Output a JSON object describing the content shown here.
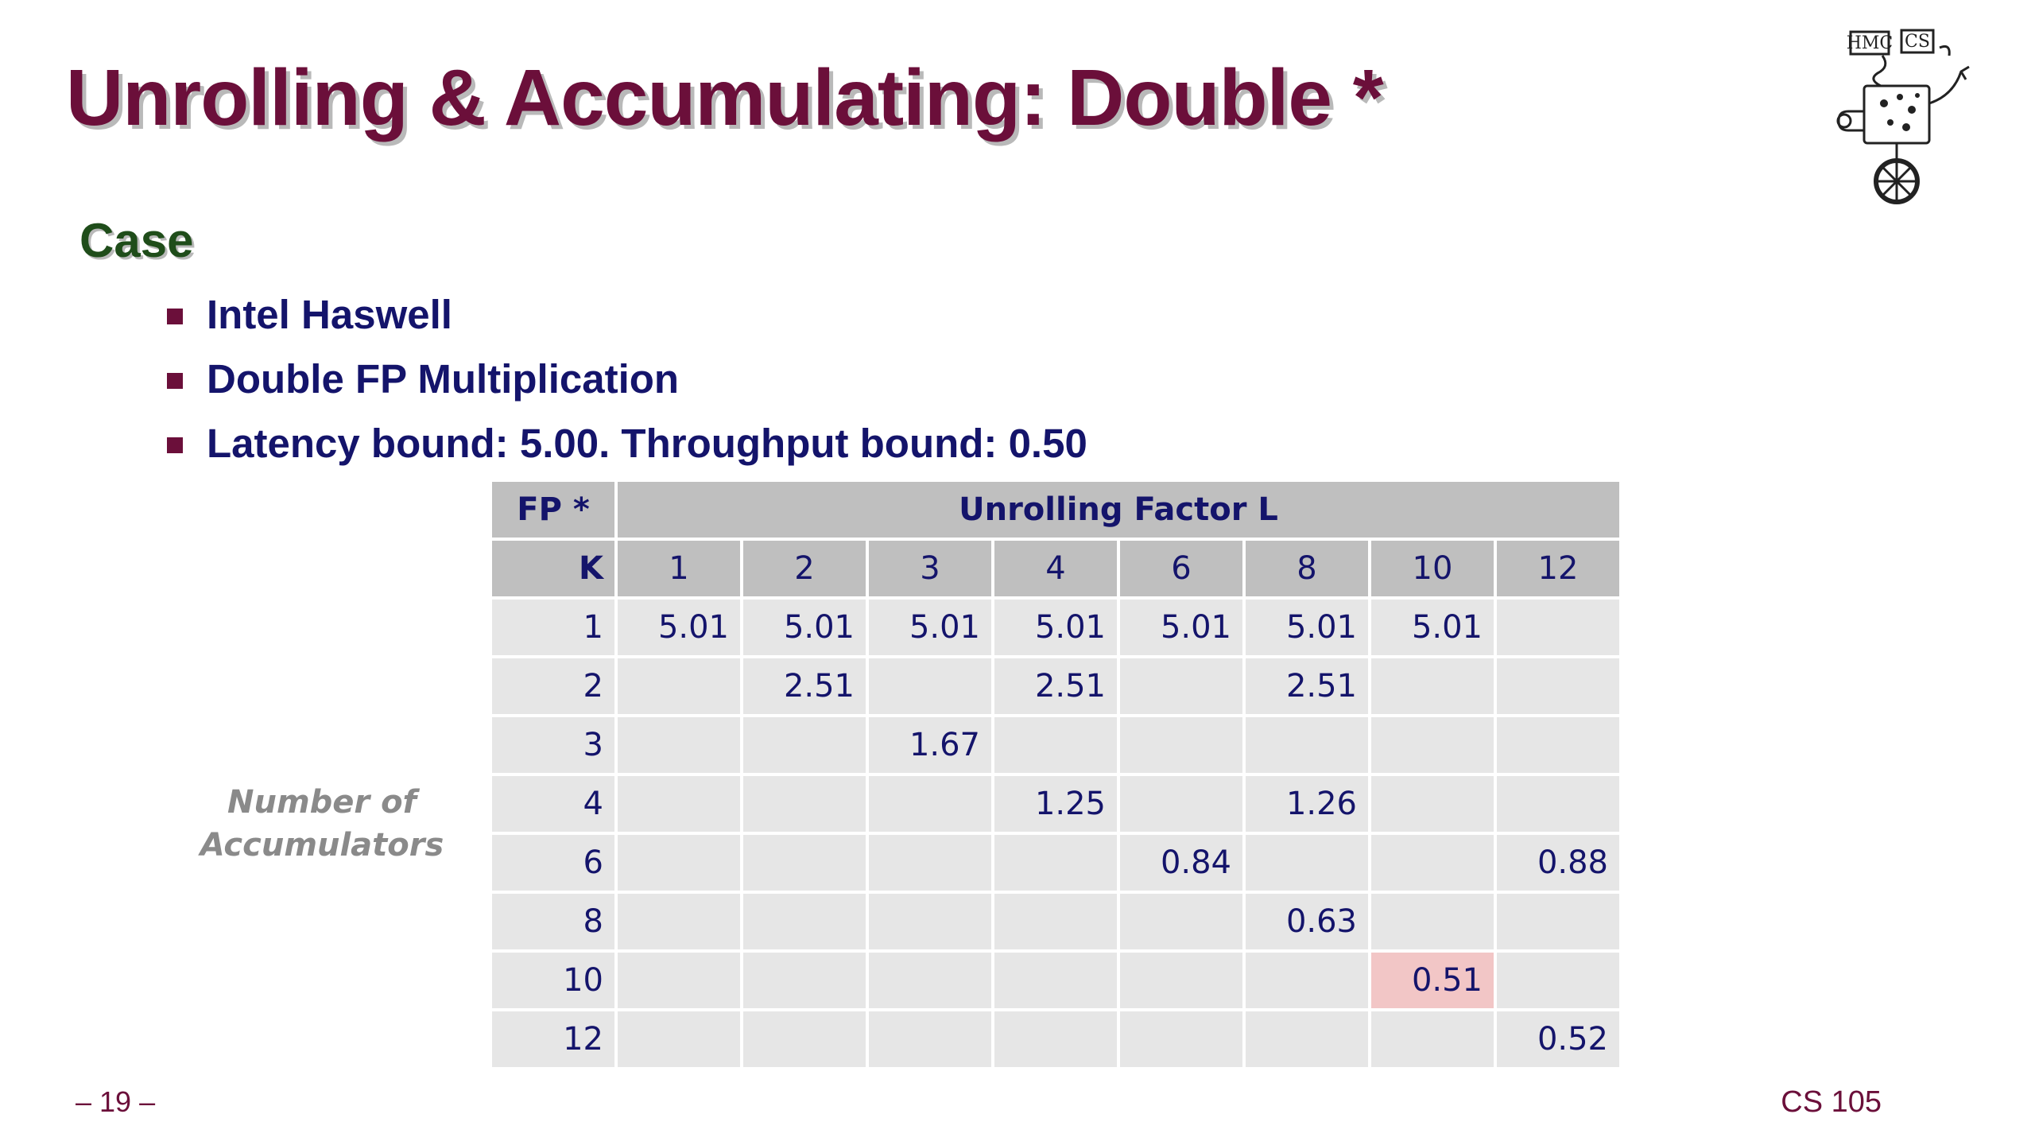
{
  "slide": {
    "title": "Unrolling & Accumulating: Double *",
    "case_heading": "Case",
    "bullets": [
      "Intel Haswell",
      "Double FP Multiplication",
      "Latency bound: 5.00.  Throughput bound: 0.50"
    ],
    "side_label": [
      "Number of",
      "Accumulators"
    ],
    "page_number": "– 19 –",
    "course": "CS 105"
  },
  "logo": {
    "text": "HMC CS",
    "icon": "hmc-cs-robot-logo"
  },
  "table": {
    "corner_label": "FP *",
    "group_header": "Unrolling Factor L",
    "row_header_label": "K",
    "columns": [
      "1",
      "2",
      "3",
      "4",
      "6",
      "8",
      "10",
      "12"
    ],
    "rows": [
      {
        "k": "1",
        "cells": [
          "5.01",
          "5.01",
          "5.01",
          "5.01",
          "5.01",
          "5.01",
          "5.01",
          ""
        ]
      },
      {
        "k": "2",
        "cells": [
          "",
          "2.51",
          "",
          "2.51",
          "",
          "2.51",
          "",
          ""
        ]
      },
      {
        "k": "3",
        "cells": [
          "",
          "",
          "1.67",
          "",
          "",
          "",
          "",
          ""
        ]
      },
      {
        "k": "4",
        "cells": [
          "",
          "",
          "",
          "1.25",
          "",
          "1.26",
          "",
          ""
        ]
      },
      {
        "k": "6",
        "cells": [
          "",
          "",
          "",
          "",
          "0.84",
          "",
          "",
          "0.88"
        ]
      },
      {
        "k": "8",
        "cells": [
          "",
          "",
          "",
          "",
          "",
          "0.63",
          "",
          ""
        ]
      },
      {
        "k": "10",
        "cells": [
          "",
          "",
          "",
          "",
          "",
          "",
          "0.51",
          ""
        ]
      },
      {
        "k": "12",
        "cells": [
          "",
          "",
          "",
          "",
          "",
          "",
          "",
          "0.52"
        ]
      }
    ],
    "highlight": {
      "row": 6,
      "col": 6,
      "color": "#f2c6c6"
    }
  },
  "colors": {
    "title": "#6b0f3a",
    "heading": "#1f4d1a",
    "bullet_text": "#14146b",
    "header_bg": "#bfbfbf",
    "cell_bg": "#e6e6e6"
  }
}
